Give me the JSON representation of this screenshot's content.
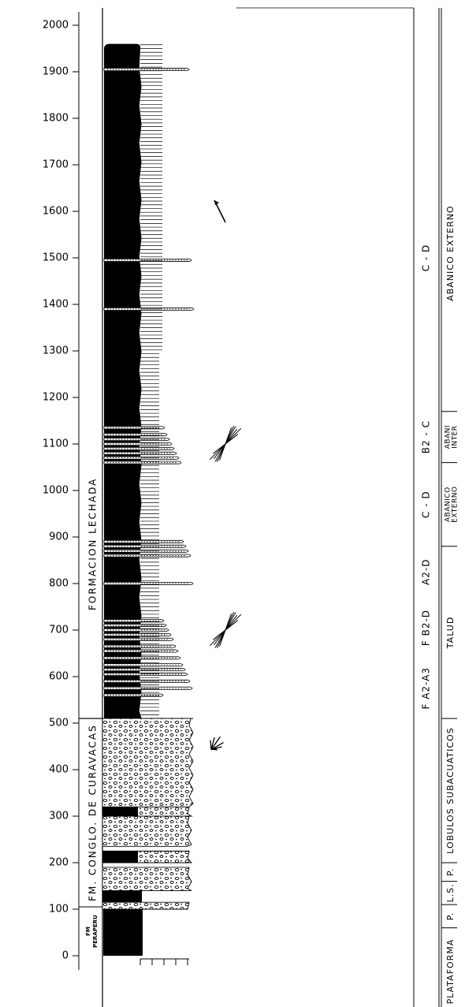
{
  "axis": {
    "ticks": [
      0,
      100,
      200,
      300,
      400,
      500,
      600,
      700,
      800,
      900,
      1000,
      1100,
      1200,
      1300,
      1400,
      1500,
      1600,
      1700,
      1800,
      1900,
      2000
    ]
  },
  "formations": [
    {
      "id": "peraperu",
      "line1": "FM",
      "line2": "PERAPERU",
      "from": 0,
      "to": 105
    },
    {
      "id": "conglo",
      "label": "FM. CONGLO.   DE   CURAVACAS",
      "from": 105,
      "to": 510
    },
    {
      "id": "lechada",
      "label": "FORMACION   LECHADA",
      "from": 510,
      "to": 2000
    }
  ],
  "facies": [
    {
      "id": "f-a2a3",
      "label": "F  A2-A3",
      "from": 510,
      "to": 640
    },
    {
      "id": "f-b2d",
      "label": "F  B2-D",
      "from": 640,
      "to": 770
    },
    {
      "id": "a2d",
      "label": "A2-D",
      "from": 770,
      "to": 880
    },
    {
      "id": "cd-1",
      "label": "C - D",
      "from": 880,
      "to": 1060
    },
    {
      "id": "b2c",
      "label": "B2 - C",
      "from": 1060,
      "to": 1170
    },
    {
      "id": "cd-2",
      "label": "C - D",
      "from": 1170,
      "to": 2000
    }
  ],
  "environments": [
    {
      "id": "plataforma",
      "label": "PLATAFORMA",
      "from": -120,
      "to": 60
    },
    {
      "id": "p-1",
      "label": "P.",
      "from": 60,
      "to": 110
    },
    {
      "id": "ls",
      "label": "L.S.",
      "from": 110,
      "to": 160
    },
    {
      "id": "p-2",
      "label": "P.",
      "from": 160,
      "to": 200
    },
    {
      "id": "lobulos",
      "label": "LOBULOS  SUBACUATICOS",
      "from": 200,
      "to": 510
    },
    {
      "id": "talud",
      "label": "TALUD",
      "from": 510,
      "to": 880
    },
    {
      "id": "abanico-ext-1",
      "line1": "ABANICO",
      "line2": "EXTERNO",
      "from": 880,
      "to": 1060
    },
    {
      "id": "abanico-int",
      "line1": "ABANI",
      "line2": "INTER",
      "from": 1060,
      "to": 1170
    },
    {
      "id": "abanico-ext-2",
      "label": "ABANICO  EXTERNO",
      "from": 1170,
      "to": 2000
    }
  ],
  "lithology": {
    "shale_units": [
      {
        "from": 0,
        "to": 100
      },
      {
        "from": 510,
        "to": 1960
      }
    ],
    "conglomerate_units": [
      {
        "from": 100,
        "to": 115
      },
      {
        "from": 140,
        "to": 190
      },
      {
        "from": 200,
        "to": 225
      },
      {
        "from": 235,
        "to": 300
      },
      {
        "from": 300,
        "to": 320
      },
      {
        "from": 320,
        "to": 510
      }
    ],
    "sandstone_beds": [
      560,
      575,
      590,
      605,
      615,
      625,
      640,
      655,
      665,
      680,
      690,
      700,
      710,
      720,
      800,
      860,
      870,
      880,
      890,
      1060,
      1070,
      1080,
      1090,
      1100,
      1110,
      1120,
      1135,
      1390,
      1495,
      1905
    ]
  },
  "paleocurrents": [
    {
      "id": "rose-460",
      "depth": 460
    },
    {
      "id": "rose-700",
      "depth": 700
    },
    {
      "id": "rose-1100",
      "depth": 1100
    },
    {
      "id": "arrow-1600",
      "depth": 1600
    }
  ]
}
